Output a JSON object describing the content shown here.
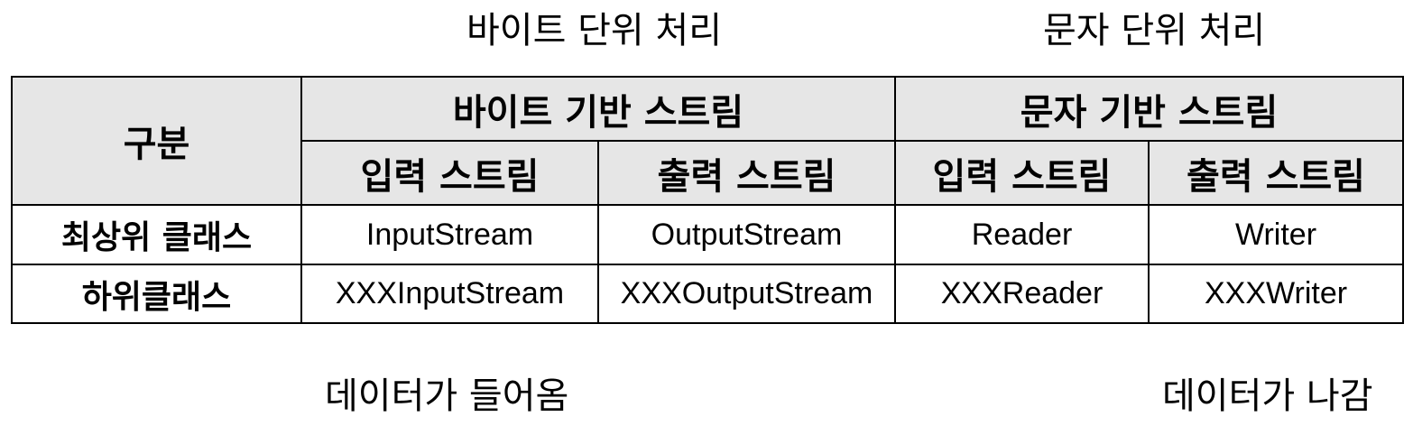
{
  "captions": {
    "top_left": "바이트 단위 처리",
    "top_right": "문자 단위 처리",
    "bottom_left": "데이터가 들어옴",
    "bottom_right": "데이터가 나감"
  },
  "table": {
    "corner_header": "구분",
    "groups": [
      "바이트 기반 스트림",
      "문자 기반 스트림"
    ],
    "subheaders": [
      "입력 스트림",
      "출력 스트림",
      "입력 스트림",
      "출력 스트림"
    ],
    "rows": [
      {
        "label": "최상위 클래스",
        "cells": [
          "InputStream",
          "OutputStream",
          "Reader",
          "Writer"
        ]
      },
      {
        "label": "하위클래스",
        "cells": [
          "XXXInputStream",
          "XXXOutputStream",
          "XXXReader",
          "XXXWriter"
        ]
      }
    ]
  }
}
